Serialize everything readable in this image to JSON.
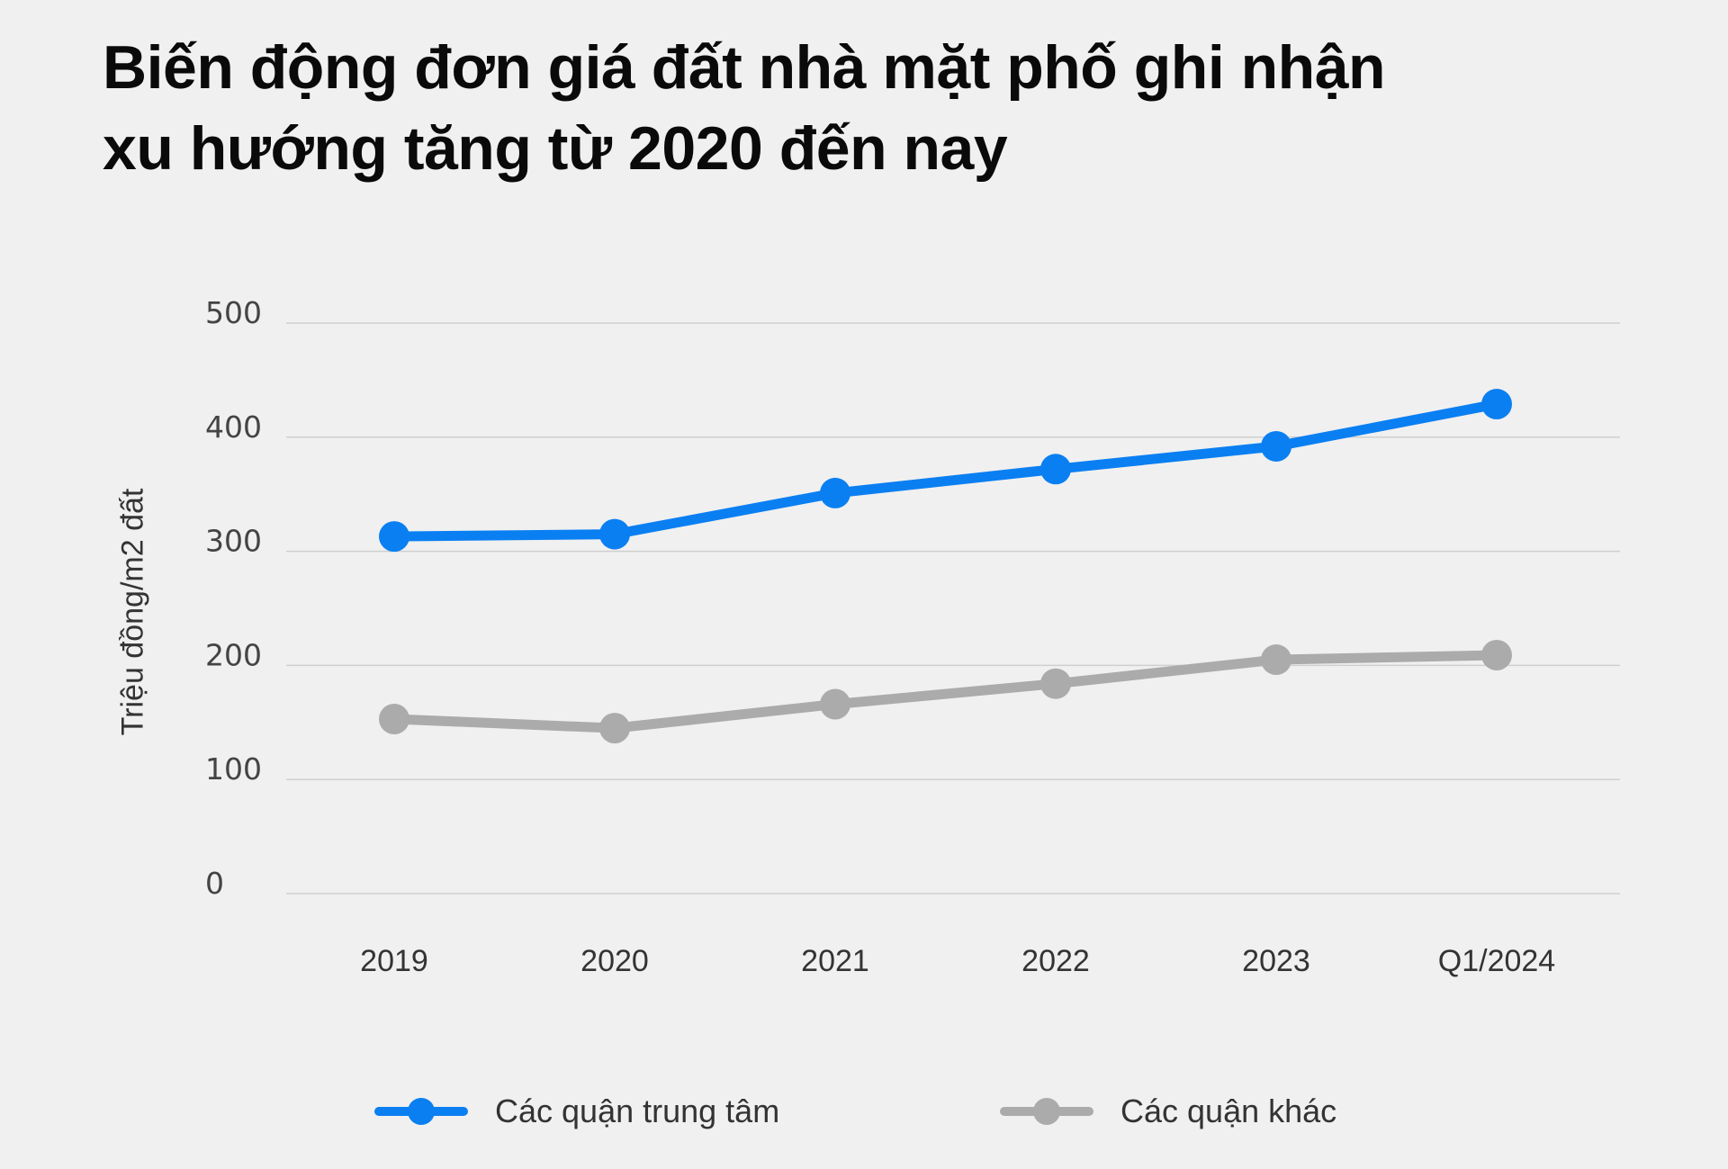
{
  "title": {
    "line1": "Biến động đơn giá đất nhà mặt phố ghi nhận",
    "line2": "xu hướng tăng từ 2020 đến nay"
  },
  "y_axis": {
    "label": "Triệu đồng/m2 đất",
    "ticks": [
      "0",
      "100",
      "200",
      "300",
      "400",
      "500"
    ]
  },
  "x_axis": {
    "ticks": [
      "2019",
      "2020",
      "2021",
      "2022",
      "2023",
      "Q1/2024"
    ]
  },
  "legend": {
    "items": [
      {
        "label": "Các quận trung tâm",
        "color": "#0a7ff2"
      },
      {
        "label": "Các quận khác",
        "color": "#ababab"
      }
    ]
  },
  "chart_data": {
    "type": "line",
    "title": "Biến động đơn giá đất nhà mặt phố ghi nhận xu hướng tăng từ 2020 đến nay",
    "xlabel": "",
    "ylabel": "Triệu đồng/m2 đất",
    "categories": [
      "2019",
      "2020",
      "2021",
      "2022",
      "2023",
      "Q1/2024"
    ],
    "ylim": [
      0,
      500
    ],
    "yticks": [
      0,
      100,
      200,
      300,
      400,
      500
    ],
    "grid": "horizontal",
    "legend_position": "bottom",
    "series": [
      {
        "name": "Các quận trung tâm",
        "color": "#0a7ff2",
        "values": [
          313,
          315,
          351,
          372,
          392,
          429
        ]
      },
      {
        "name": "Các quận khác",
        "color": "#ababab",
        "values": [
          153,
          145,
          166,
          184,
          205,
          209
        ]
      }
    ]
  }
}
